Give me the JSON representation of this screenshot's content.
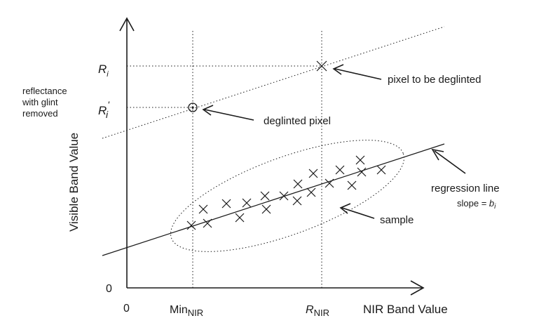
{
  "axes": {
    "y_label": "Visible Band Value",
    "x_label": "NIR Band Value",
    "y_origin": "0",
    "x_origin": "0"
  },
  "ticks": {
    "min_nir_main": "Min",
    "min_nir_sub": "NIR",
    "r_nir_main": "R",
    "r_nir_sub": "NIR",
    "ri_main": "R",
    "ri_sub": "i",
    "ri_prime_main": "R",
    "ri_prime_sub": "i",
    "ri_prime_sup": "'"
  },
  "annotations": {
    "reflectance_line1": "reflectance",
    "reflectance_line2": "with glint",
    "reflectance_line3": "removed",
    "pixel_to_be_deglinted": "pixel to be deglinted",
    "deglinted_pixel": "deglinted pixel",
    "regression_line": "regression line",
    "slope_text": "slope = ",
    "slope_var": "b",
    "slope_sub": "i",
    "sample": "sample"
  },
  "sample_points": [
    [
      273,
      321
    ],
    [
      296,
      318
    ],
    [
      290,
      298
    ],
    [
      342,
      310
    ],
    [
      323,
      290
    ],
    [
      352,
      289
    ],
    [
      378,
      279
    ],
    [
      380,
      298
    ],
    [
      405,
      279
    ],
    [
      424,
      286
    ],
    [
      425,
      262
    ],
    [
      444,
      274
    ],
    [
      447,
      247
    ],
    [
      470,
      261
    ],
    [
      485,
      242
    ],
    [
      502,
      264
    ],
    [
      514,
      228
    ],
    [
      516,
      245
    ],
    [
      544,
      242
    ]
  ]
}
